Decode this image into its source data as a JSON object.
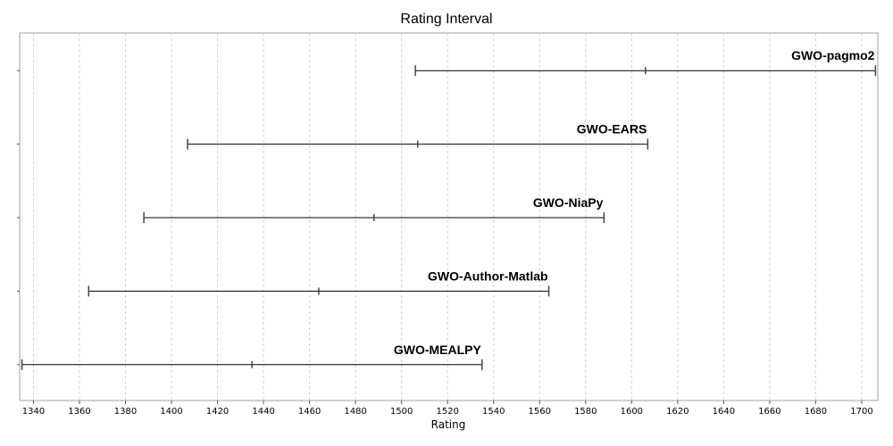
{
  "chart_data": {
    "type": "interval",
    "title": "Rating Interval",
    "xlabel": "Rating",
    "ylabel": "",
    "xlim": [
      1334,
      1707
    ],
    "x_ticks": [
      1340,
      1360,
      1380,
      1400,
      1420,
      1440,
      1460,
      1480,
      1500,
      1520,
      1540,
      1560,
      1580,
      1600,
      1620,
      1640,
      1660,
      1680,
      1700
    ],
    "grid": {
      "x": true,
      "y": false,
      "style": "dashed"
    },
    "series": [
      {
        "name": "GWO-pagmo2",
        "low": 1506,
        "mid": 1606,
        "high": 1706
      },
      {
        "name": "GWO-EARS",
        "low": 1407,
        "mid": 1507,
        "high": 1607
      },
      {
        "name": "GWO-NiaPy",
        "low": 1388,
        "mid": 1488,
        "high": 1588
      },
      {
        "name": "GWO-Author-Matlab",
        "low": 1364,
        "mid": 1464,
        "high": 1564
      },
      {
        "name": "GWO-MEALPY",
        "low": 1335,
        "mid": 1435,
        "high": 1535
      }
    ],
    "colors": {
      "line": "#000000",
      "cap": "#444444",
      "grid": "#d0d0d0",
      "frame": "#a0a0a0"
    }
  }
}
